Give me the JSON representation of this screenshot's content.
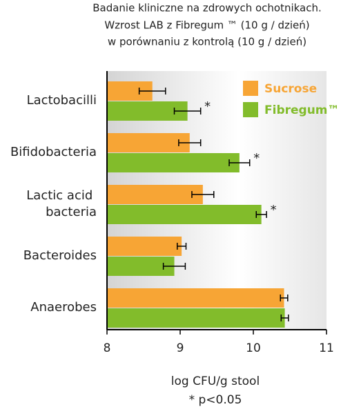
{
  "chart_data": {
    "type": "bar",
    "orientation": "horizontal",
    "title": [
      "Badanie kliniczne na zdrowych ochotnikach.",
      "Wzrost LAB z Fibregum ™ (10 g / dzień)",
      "w porównaniu z kontrolą (10 g / dzień)"
    ],
    "categories": [
      "Lactobacilli",
      "Bifidobacteria",
      "Lactic acid bacteria",
      "Bacteroides",
      "Anaerobes"
    ],
    "series": [
      {
        "name": "Sucrose",
        "color": "#f7a535",
        "values": [
          8.62,
          9.13,
          9.31,
          9.02,
          10.42
        ],
        "errors": [
          0.18,
          0.15,
          0.15,
          0.06,
          0.05
        ]
      },
      {
        "name": "Fibregum™",
        "color": "#82bc2b",
        "values": [
          9.1,
          9.81,
          10.11,
          8.92,
          10.43
        ],
        "errors": [
          0.18,
          0.14,
          0.07,
          0.15,
          0.05
        ],
        "significant": [
          true,
          true,
          true,
          false,
          false
        ]
      }
    ],
    "significance_marker": "*",
    "xlim": [
      8,
      11
    ],
    "xticks": [
      8,
      9,
      10,
      11
    ],
    "xlabel": "log CFU/g stool",
    "footnote": "* p<0.05",
    "legend": "top-right"
  }
}
